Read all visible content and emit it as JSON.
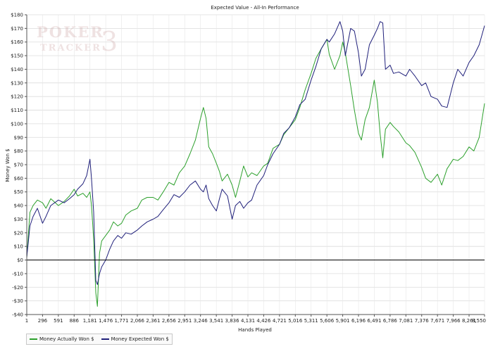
{
  "chart_data": {
    "type": "line",
    "title": "Expected Value - All-In Performance",
    "xlabel": "Hands Played",
    "ylabel": "Money Won $",
    "xlim": [
      1,
      8550
    ],
    "ylim": [
      -40,
      180
    ],
    "x_ticks": [
      1,
      296,
      591,
      886,
      1181,
      1476,
      1771,
      2066,
      2361,
      2656,
      2951,
      3246,
      3541,
      3836,
      4131,
      4426,
      4721,
      5016,
      5311,
      5606,
      5901,
      6196,
      6491,
      6786,
      7081,
      7376,
      7671,
      7966,
      8261,
      8550
    ],
    "x_tick_labels": [
      "1",
      "296",
      "591",
      "886",
      "1,181",
      "1,476",
      "1,771",
      "2,066",
      "2,361",
      "2,656",
      "2,951",
      "3,246",
      "3,541",
      "3,836",
      "4,131",
      "4,426",
      "4,721",
      "5,016",
      "5,311",
      "5,606",
      "5,901",
      "6,196",
      "6,491",
      "6,786",
      "7,081",
      "7,376",
      "7,671",
      "7,966",
      "8,261",
      "8,550"
    ],
    "y_ticks": [
      -40,
      -30,
      -20,
      -10,
      0,
      10,
      20,
      30,
      40,
      50,
      60,
      70,
      80,
      90,
      100,
      110,
      120,
      130,
      140,
      150,
      160,
      170,
      180
    ],
    "y_tick_labels": [
      "-$40",
      "-$30",
      "-$20",
      "-$10",
      "$0",
      "$10",
      "$20",
      "$30",
      "$40",
      "$50",
      "$60",
      "$70",
      "$80",
      "$90",
      "$100",
      "$110",
      "$120",
      "$130",
      "$140",
      "$150",
      "$160",
      "$170",
      "$180"
    ],
    "grid": true,
    "legend_position": "bottom-left",
    "series": [
      {
        "name": "Money Actually Won $",
        "color": "#2ca02c",
        "x": [
          1,
          60,
          120,
          200,
          296,
          360,
          450,
          591,
          700,
          800,
          886,
          950,
          1050,
          1120,
          1181,
          1210,
          1250,
          1290,
          1320,
          1360,
          1400,
          1476,
          1550,
          1620,
          1700,
          1771,
          1850,
          1950,
          2066,
          2150,
          2250,
          2361,
          2450,
          2550,
          2656,
          2750,
          2850,
          2951,
          3050,
          3150,
          3246,
          3300,
          3350,
          3400,
          3470,
          3541,
          3600,
          3650,
          3750,
          3836,
          3900,
          3980,
          4050,
          4131,
          4200,
          4300,
          4426,
          4500,
          4600,
          4721,
          4800,
          4900,
          5016,
          5100,
          5200,
          5311,
          5400,
          5500,
          5606,
          5650,
          5750,
          5850,
          5901,
          5950,
          6050,
          6120,
          6196,
          6250,
          6320,
          6400,
          6491,
          6550,
          6600,
          6650,
          6700,
          6786,
          6850,
          6950,
          7081,
          7150,
          7250,
          7376,
          7450,
          7550,
          7671,
          7750,
          7850,
          7966,
          8050,
          8150,
          8261,
          8350,
          8450,
          8550
        ],
        "values": [
          2,
          35,
          40,
          44,
          42,
          38,
          45,
          40,
          43,
          47,
          52,
          47,
          49,
          46,
          50,
          40,
          15,
          -24,
          -34,
          5,
          14,
          18,
          22,
          28,
          25,
          27,
          33,
          36,
          38,
          44,
          46,
          46,
          44,
          50,
          57,
          55,
          64,
          69,
          78,
          88,
          104,
          112,
          104,
          83,
          78,
          71,
          65,
          58,
          63,
          55,
          46,
          58,
          69,
          61,
          64,
          62,
          69,
          71,
          82,
          85,
          92,
          97,
          103,
          112,
          125,
          137,
          148,
          155,
          162,
          151,
          140,
          150,
          160,
          152,
          128,
          110,
          93,
          88,
          103,
          112,
          132,
          116,
          93,
          75,
          96,
          101,
          98,
          94,
          86,
          84,
          79,
          68,
          60,
          57,
          63,
          55,
          67,
          74,
          73,
          76,
          83,
          80,
          90,
          115
        ]
      },
      {
        "name": "Money Expected Won $",
        "color": "#1f1f7a",
        "x": [
          1,
          60,
          120,
          200,
          296,
          360,
          450,
          591,
          700,
          800,
          886,
          950,
          1050,
          1120,
          1150,
          1181,
          1210,
          1250,
          1290,
          1320,
          1360,
          1400,
          1476,
          1550,
          1620,
          1700,
          1771,
          1850,
          1950,
          2066,
          2150,
          2250,
          2361,
          2450,
          2550,
          2656,
          2750,
          2850,
          2951,
          3050,
          3150,
          3246,
          3300,
          3350,
          3400,
          3470,
          3541,
          3600,
          3650,
          3750,
          3836,
          3900,
          3980,
          4050,
          4131,
          4200,
          4300,
          4426,
          4500,
          4600,
          4721,
          4800,
          4900,
          5016,
          5100,
          5200,
          5311,
          5400,
          5500,
          5606,
          5650,
          5750,
          5850,
          5901,
          5950,
          6050,
          6120,
          6196,
          6250,
          6320,
          6400,
          6491,
          6550,
          6600,
          6650,
          6700,
          6786,
          6850,
          6950,
          7081,
          7150,
          7250,
          7376,
          7450,
          7550,
          7671,
          7750,
          7850,
          7966,
          8050,
          8150,
          8261,
          8350,
          8450,
          8550
        ],
        "values": [
          2,
          25,
          32,
          38,
          27,
          32,
          40,
          44,
          42,
          45,
          48,
          52,
          56,
          62,
          68,
          74,
          60,
          35,
          -15,
          -18,
          -10,
          -5,
          0,
          8,
          14,
          18,
          16,
          20,
          19,
          22,
          25,
          28,
          30,
          32,
          37,
          42,
          48,
          46,
          50,
          55,
          58,
          52,
          50,
          55,
          45,
          40,
          36,
          45,
          52,
          47,
          30,
          40,
          43,
          38,
          42,
          44,
          55,
          62,
          70,
          78,
          85,
          93,
          97,
          105,
          114,
          118,
          132,
          142,
          155,
          162,
          160,
          166,
          175,
          168,
          150,
          170,
          168,
          152,
          135,
          140,
          158,
          165,
          170,
          175,
          174,
          140,
          143,
          137,
          138,
          135,
          140,
          135,
          128,
          130,
          120,
          118,
          113,
          112,
          130,
          140,
          135,
          145,
          150,
          158,
          172
        ]
      }
    ]
  },
  "watermark": {
    "line1": "POKER",
    "line2": "TRACKER",
    "mark": "3",
    "color": "#c79a9a"
  },
  "legend": {
    "items": [
      {
        "label": "Money Actually Won $",
        "color": "#2ca02c"
      },
      {
        "label": "Money Expected Won $",
        "color": "#1f1f7a"
      }
    ]
  }
}
